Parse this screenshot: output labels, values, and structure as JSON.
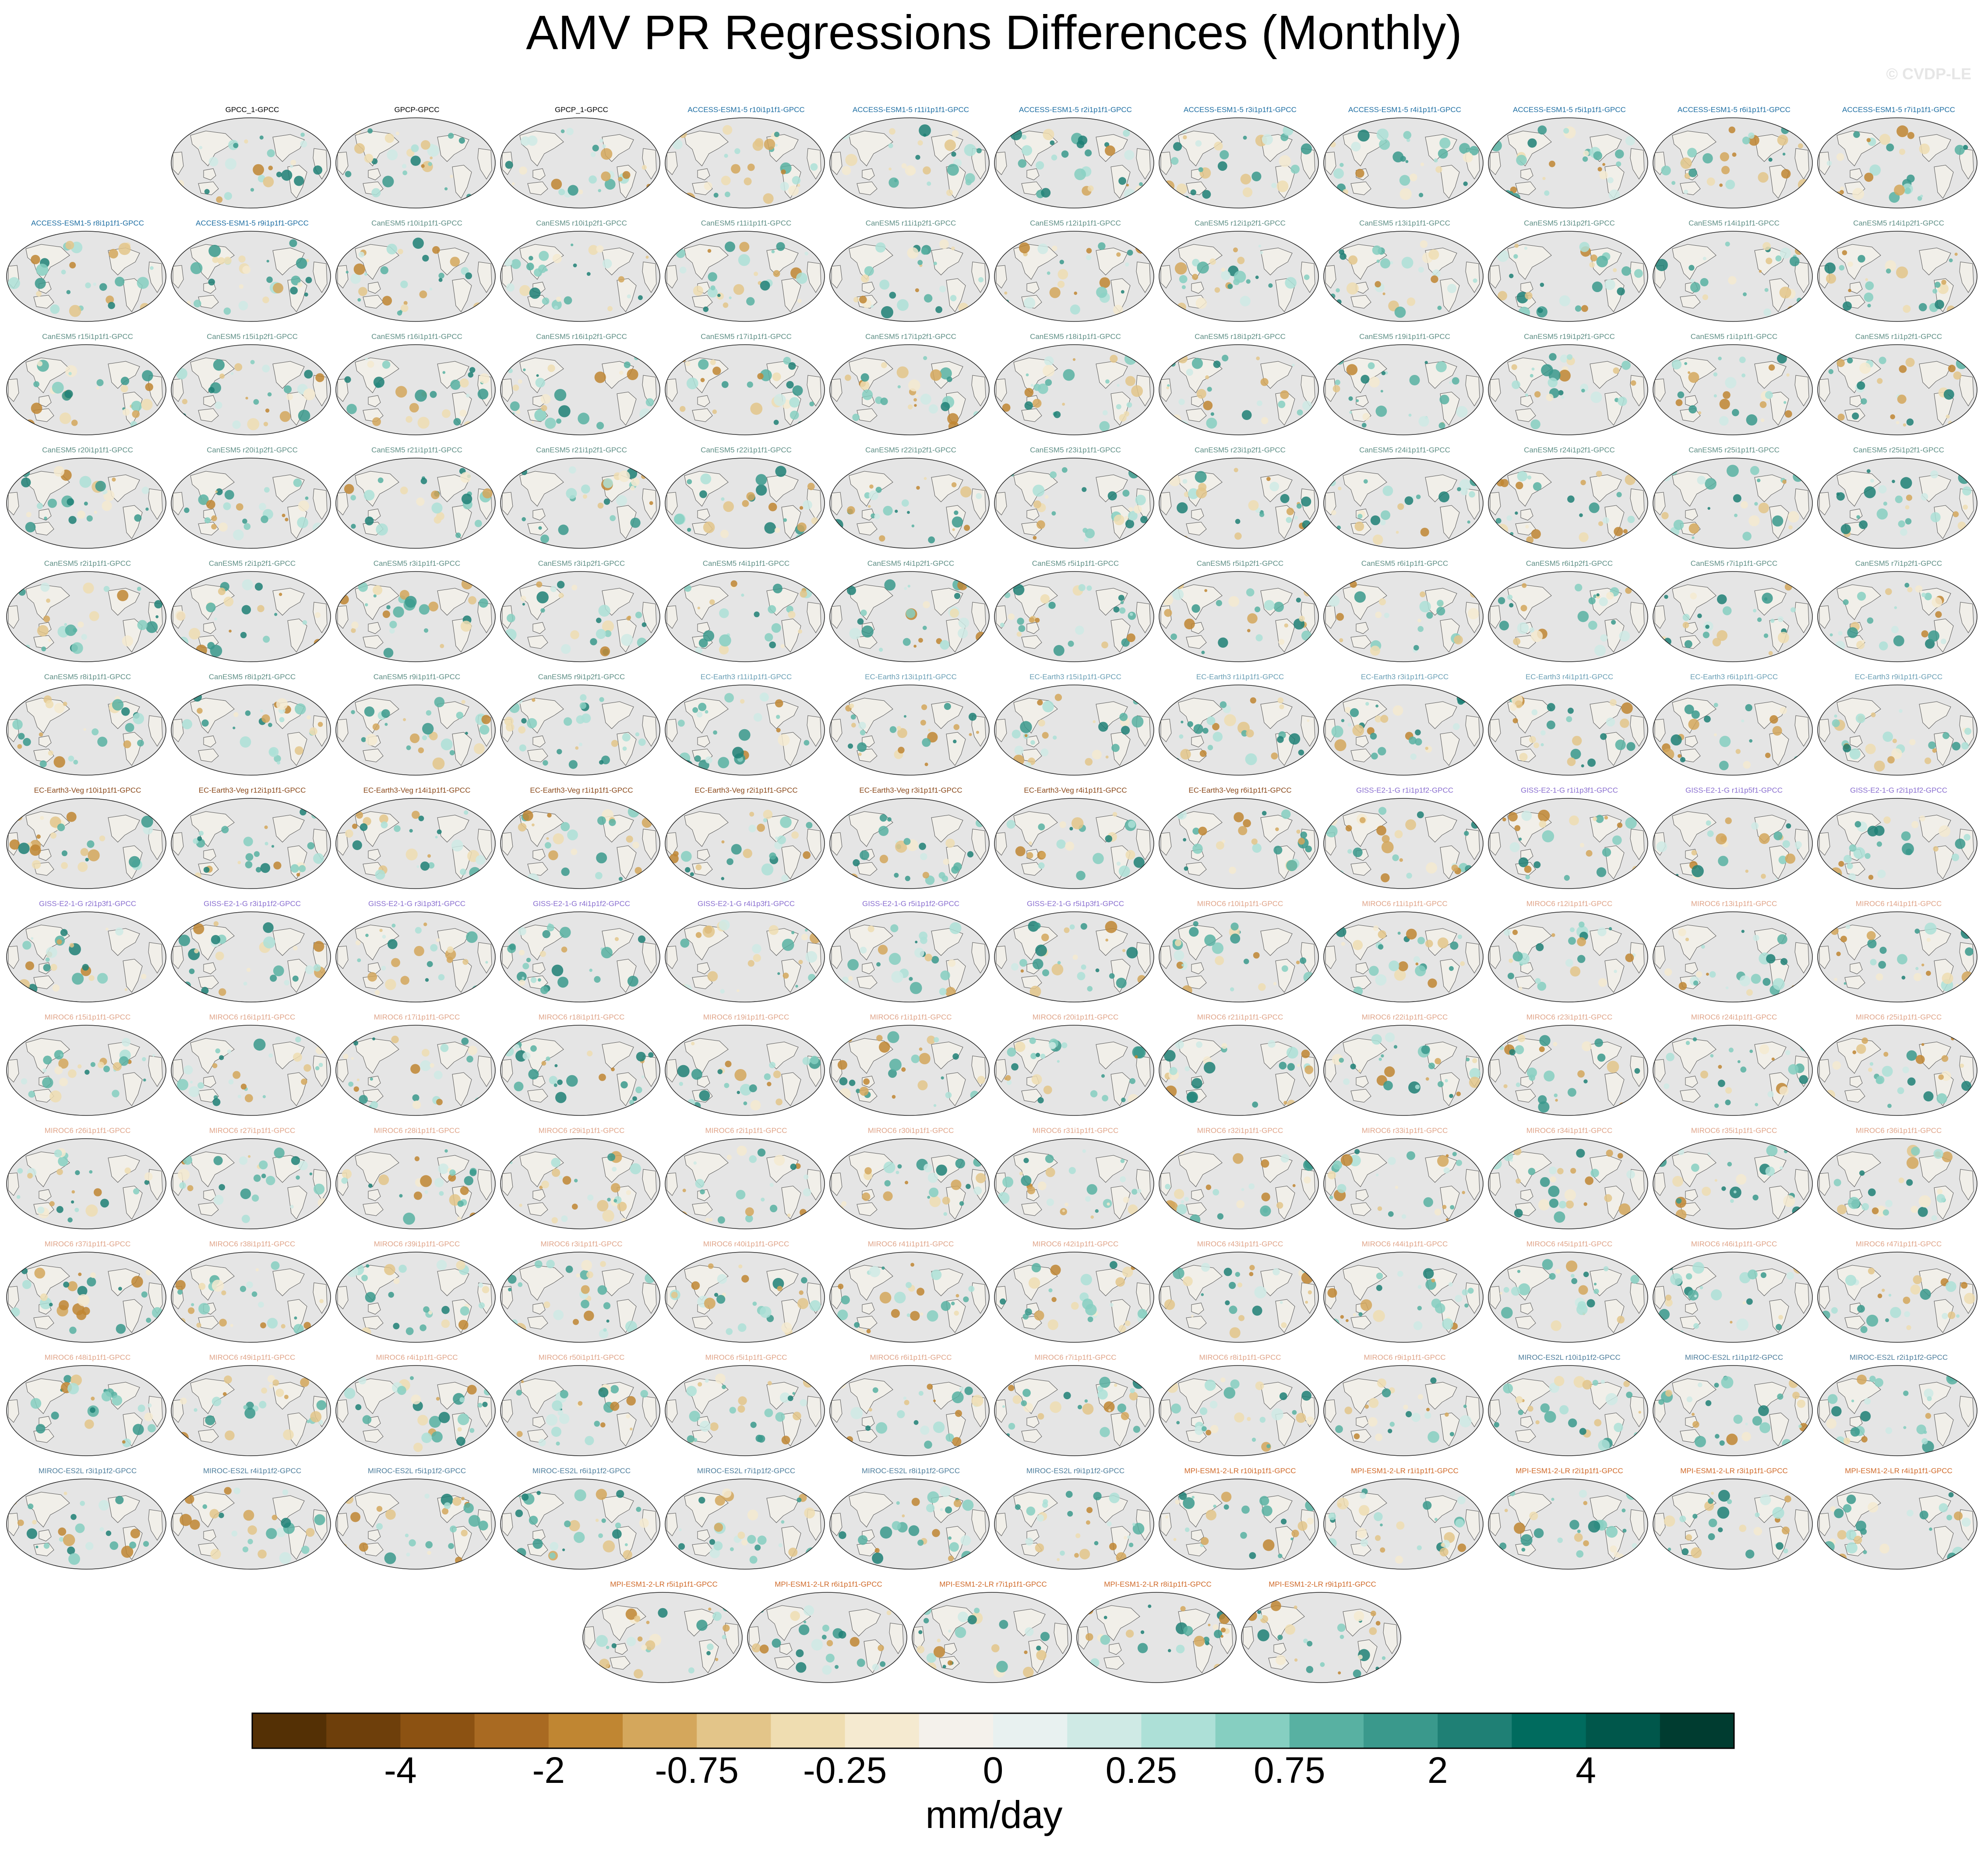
{
  "title": "AMV PR Regressions Differences (Monthly)",
  "watermark": "© CVDP-LE",
  "chart_data": {
    "type": "heatmap",
    "map_projection": "robinson-pacific-centered",
    "colorbar": {
      "units": "mm/day",
      "tick_labels": [
        "-4",
        "-2",
        "-0.75",
        "-0.25",
        "0",
        "0.25",
        "0.75",
        "2",
        "4"
      ],
      "colors": [
        "#543005",
        "#6e3f0b",
        "#8c5212",
        "#a96a22",
        "#c08632",
        "#d4a75c",
        "#e3c589",
        "#efddb1",
        "#f5ead0",
        "#f4f1eb",
        "#e8f1f0",
        "#cfeae5",
        "#ade0d7",
        "#86cfc1",
        "#58b1a2",
        "#3a998c",
        "#1f8075",
        "#006b5e",
        "#00574b",
        "#003c30"
      ]
    },
    "panels": [
      {
        "label": "GPCC_1-GPCC",
        "color": "#000000"
      },
      {
        "label": "GPCP-GPCC",
        "color": "#000000"
      },
      {
        "label": "GPCP_1-GPCC",
        "color": "#000000"
      },
      {
        "label": "ACCESS-ESM1-5 r10i1p1f1-GPCC",
        "color": "#1f6fa3"
      },
      {
        "label": "ACCESS-ESM1-5 r11i1p1f1-GPCC",
        "color": "#1f6fa3"
      },
      {
        "label": "ACCESS-ESM1-5 r2i1p1f1-GPCC",
        "color": "#1f6fa3"
      },
      {
        "label": "ACCESS-ESM1-5 r3i1p1f1-GPCC",
        "color": "#1f6fa3"
      },
      {
        "label": "ACCESS-ESM1-5 r4i1p1f1-GPCC",
        "color": "#1f6fa3"
      },
      {
        "label": "ACCESS-ESM1-5 r5i1p1f1-GPCC",
        "color": "#1f6fa3"
      },
      {
        "label": "ACCESS-ESM1-5 r6i1p1f1-GPCC",
        "color": "#1f6fa3"
      },
      {
        "label": "ACCESS-ESM1-5 r7i1p1f1-GPCC",
        "color": "#1f6fa3"
      },
      {
        "label": "ACCESS-ESM1-5 r8i1p1f1-GPCC",
        "color": "#1f6fa3"
      },
      {
        "label": "ACCESS-ESM1-5 r9i1p1f1-GPCC",
        "color": "#1f6fa3"
      },
      {
        "label": "CanESM5 r10i1p1f1-GPCC",
        "color": "#5f8f86"
      },
      {
        "label": "CanESM5 r10i1p2f1-GPCC",
        "color": "#5f8f86"
      },
      {
        "label": "CanESM5 r11i1p1f1-GPCC",
        "color": "#5f8f86"
      },
      {
        "label": "CanESM5 r11i1p2f1-GPCC",
        "color": "#5f8f86"
      },
      {
        "label": "CanESM5 r12i1p1f1-GPCC",
        "color": "#5f8f86"
      },
      {
        "label": "CanESM5 r12i1p2f1-GPCC",
        "color": "#5f8f86"
      },
      {
        "label": "CanESM5 r13i1p1f1-GPCC",
        "color": "#5f8f86"
      },
      {
        "label": "CanESM5 r13i1p2f1-GPCC",
        "color": "#5f8f86"
      },
      {
        "label": "CanESM5 r14i1p1f1-GPCC",
        "color": "#5f8f86"
      },
      {
        "label": "CanESM5 r14i1p2f1-GPCC",
        "color": "#5f8f86"
      },
      {
        "label": "CanESM5 r15i1p1f1-GPCC",
        "color": "#5f8f86"
      },
      {
        "label": "CanESM5 r15i1p2f1-GPCC",
        "color": "#5f8f86"
      },
      {
        "label": "CanESM5 r16i1p1f1-GPCC",
        "color": "#5f8f86"
      },
      {
        "label": "CanESM5 r16i1p2f1-GPCC",
        "color": "#5f8f86"
      },
      {
        "label": "CanESM5 r17i1p1f1-GPCC",
        "color": "#5f8f86"
      },
      {
        "label": "CanESM5 r17i1p2f1-GPCC",
        "color": "#5f8f86"
      },
      {
        "label": "CanESM5 r18i1p1f1-GPCC",
        "color": "#5f8f86"
      },
      {
        "label": "CanESM5 r18i1p2f1-GPCC",
        "color": "#5f8f86"
      },
      {
        "label": "CanESM5 r19i1p1f1-GPCC",
        "color": "#5f8f86"
      },
      {
        "label": "CanESM5 r19i1p2f1-GPCC",
        "color": "#5f8f86"
      },
      {
        "label": "CanESM5 r1i1p1f1-GPCC",
        "color": "#5f8f86"
      },
      {
        "label": "CanESM5 r1i1p2f1-GPCC",
        "color": "#5f8f86"
      },
      {
        "label": "CanESM5 r20i1p1f1-GPCC",
        "color": "#5f8f86"
      },
      {
        "label": "CanESM5 r20i1p2f1-GPCC",
        "color": "#5f8f86"
      },
      {
        "label": "CanESM5 r21i1p1f1-GPCC",
        "color": "#5f8f86"
      },
      {
        "label": "CanESM5 r21i1p2f1-GPCC",
        "color": "#5f8f86"
      },
      {
        "label": "CanESM5 r22i1p1f1-GPCC",
        "color": "#5f8f86"
      },
      {
        "label": "CanESM5 r22i1p2f1-GPCC",
        "color": "#5f8f86"
      },
      {
        "label": "CanESM5 r23i1p1f1-GPCC",
        "color": "#5f8f86"
      },
      {
        "label": "CanESM5 r23i1p2f1-GPCC",
        "color": "#5f8f86"
      },
      {
        "label": "CanESM5 r24i1p1f1-GPCC",
        "color": "#5f8f86"
      },
      {
        "label": "CanESM5 r24i1p2f1-GPCC",
        "color": "#5f8f86"
      },
      {
        "label": "CanESM5 r25i1p1f1-GPCC",
        "color": "#5f8f86"
      },
      {
        "label": "CanESM5 r25i1p2f1-GPCC",
        "color": "#5f8f86"
      },
      {
        "label": "CanESM5 r2i1p1f1-GPCC",
        "color": "#5f8f86"
      },
      {
        "label": "CanESM5 r2i1p2f1-GPCC",
        "color": "#5f8f86"
      },
      {
        "label": "CanESM5 r3i1p1f1-GPCC",
        "color": "#5f8f86"
      },
      {
        "label": "CanESM5 r3i1p2f1-GPCC",
        "color": "#5f8f86"
      },
      {
        "label": "CanESM5 r4i1p1f1-GPCC",
        "color": "#5f8f86"
      },
      {
        "label": "CanESM5 r4i1p2f1-GPCC",
        "color": "#5f8f86"
      },
      {
        "label": "CanESM5 r5i1p1f1-GPCC",
        "color": "#5f8f86"
      },
      {
        "label": "CanESM5 r5i1p2f1-GPCC",
        "color": "#5f8f86"
      },
      {
        "label": "CanESM5 r6i1p1f1-GPCC",
        "color": "#5f8f86"
      },
      {
        "label": "CanESM5 r6i1p2f1-GPCC",
        "color": "#5f8f86"
      },
      {
        "label": "CanESM5 r7i1p1f1-GPCC",
        "color": "#5f8f86"
      },
      {
        "label": "CanESM5 r7i1p2f1-GPCC",
        "color": "#5f8f86"
      },
      {
        "label": "CanESM5 r8i1p1f1-GPCC",
        "color": "#5f8f86"
      },
      {
        "label": "CanESM5 r8i1p2f1-GPCC",
        "color": "#5f8f86"
      },
      {
        "label": "CanESM5 r9i1p1f1-GPCC",
        "color": "#5f8f86"
      },
      {
        "label": "CanESM5 r9i1p2f1-GPCC",
        "color": "#5f8f86"
      },
      {
        "label": "EC-Earth3 r11i1p1f1-GPCC",
        "color": "#6a9fb5"
      },
      {
        "label": "EC-Earth3 r13i1p1f1-GPCC",
        "color": "#6a9fb5"
      },
      {
        "label": "EC-Earth3 r15i1p1f1-GPCC",
        "color": "#6a9fb5"
      },
      {
        "label": "EC-Earth3 r1i1p1f1-GPCC",
        "color": "#6a9fb5"
      },
      {
        "label": "EC-Earth3 r3i1p1f1-GPCC",
        "color": "#6a9fb5"
      },
      {
        "label": "EC-Earth3 r4i1p1f1-GPCC",
        "color": "#6a9fb5"
      },
      {
        "label": "EC-Earth3 r6i1p1f1-GPCC",
        "color": "#6a9fb5"
      },
      {
        "label": "EC-Earth3 r9i1p1f1-GPCC",
        "color": "#6a9fb5"
      },
      {
        "label": "EC-Earth3-Veg r10i1p1f1-GPCC",
        "color": "#8b4a1c"
      },
      {
        "label": "EC-Earth3-Veg r12i1p1f1-GPCC",
        "color": "#8b4a1c"
      },
      {
        "label": "EC-Earth3-Veg r14i1p1f1-GPCC",
        "color": "#8b4a1c"
      },
      {
        "label": "EC-Earth3-Veg r1i1p1f1-GPCC",
        "color": "#8b4a1c"
      },
      {
        "label": "EC-Earth3-Veg r2i1p1f1-GPCC",
        "color": "#8b4a1c"
      },
      {
        "label": "EC-Earth3-Veg r3i1p1f1-GPCC",
        "color": "#8b4a1c"
      },
      {
        "label": "EC-Earth3-Veg r4i1p1f1-GPCC",
        "color": "#8b4a1c"
      },
      {
        "label": "EC-Earth3-Veg r6i1p1f1-GPCC",
        "color": "#8b4a1c"
      },
      {
        "label": "GISS-E2-1-G r1i1p1f2-GPCC",
        "color": "#8a6fd0"
      },
      {
        "label": "GISS-E2-1-G r1i1p3f1-GPCC",
        "color": "#8a6fd0"
      },
      {
        "label": "GISS-E2-1-G r1i1p5f1-GPCC",
        "color": "#8a6fd0"
      },
      {
        "label": "GISS-E2-1-G r2i1p1f2-GPCC",
        "color": "#8a6fd0"
      },
      {
        "label": "GISS-E2-1-G r2i1p3f1-GPCC",
        "color": "#8a6fd0"
      },
      {
        "label": "GISS-E2-1-G r3i1p1f2-GPCC",
        "color": "#8a6fd0"
      },
      {
        "label": "GISS-E2-1-G r3i1p3f1-GPCC",
        "color": "#8a6fd0"
      },
      {
        "label": "GISS-E2-1-G r4i1p1f2-GPCC",
        "color": "#8a6fd0"
      },
      {
        "label": "GISS-E2-1-G r4i1p3f1-GPCC",
        "color": "#8a6fd0"
      },
      {
        "label": "GISS-E2-1-G r5i1p1f2-GPCC",
        "color": "#8a6fd0"
      },
      {
        "label": "GISS-E2-1-G r5i1p3f1-GPCC",
        "color": "#8a6fd0"
      },
      {
        "label": "MIROC6 r10i1p1f1-GPCC",
        "color": "#e0a58a"
      },
      {
        "label": "MIROC6 r11i1p1f1-GPCC",
        "color": "#e0a58a"
      },
      {
        "label": "MIROC6 r12i1p1f1-GPCC",
        "color": "#e0a58a"
      },
      {
        "label": "MIROC6 r13i1p1f1-GPCC",
        "color": "#e0a58a"
      },
      {
        "label": "MIROC6 r14i1p1f1-GPCC",
        "color": "#e0a58a"
      },
      {
        "label": "MIROC6 r15i1p1f1-GPCC",
        "color": "#e0a58a"
      },
      {
        "label": "MIROC6 r16i1p1f1-GPCC",
        "color": "#e0a58a"
      },
      {
        "label": "MIROC6 r17i1p1f1-GPCC",
        "color": "#e0a58a"
      },
      {
        "label": "MIROC6 r18i1p1f1-GPCC",
        "color": "#e0a58a"
      },
      {
        "label": "MIROC6 r19i1p1f1-GPCC",
        "color": "#e0a58a"
      },
      {
        "label": "MIROC6 r1i1p1f1-GPCC",
        "color": "#e0a58a"
      },
      {
        "label": "MIROC6 r20i1p1f1-GPCC",
        "color": "#e0a58a"
      },
      {
        "label": "MIROC6 r21i1p1f1-GPCC",
        "color": "#e0a58a"
      },
      {
        "label": "MIROC6 r22i1p1f1-GPCC",
        "color": "#e0a58a"
      },
      {
        "label": "MIROC6 r23i1p1f1-GPCC",
        "color": "#e0a58a"
      },
      {
        "label": "MIROC6 r24i1p1f1-GPCC",
        "color": "#e0a58a"
      },
      {
        "label": "MIROC6 r25i1p1f1-GPCC",
        "color": "#e0a58a"
      },
      {
        "label": "MIROC6 r26i1p1f1-GPCC",
        "color": "#e0a58a"
      },
      {
        "label": "MIROC6 r27i1p1f1-GPCC",
        "color": "#e0a58a"
      },
      {
        "label": "MIROC6 r28i1p1f1-GPCC",
        "color": "#e0a58a"
      },
      {
        "label": "MIROC6 r29i1p1f1-GPCC",
        "color": "#e0a58a"
      },
      {
        "label": "MIROC6 r2i1p1f1-GPCC",
        "color": "#e0a58a"
      },
      {
        "label": "MIROC6 r30i1p1f1-GPCC",
        "color": "#e0a58a"
      },
      {
        "label": "MIROC6 r31i1p1f1-GPCC",
        "color": "#e0a58a"
      },
      {
        "label": "MIROC6 r32i1p1f1-GPCC",
        "color": "#e0a58a"
      },
      {
        "label": "MIROC6 r33i1p1f1-GPCC",
        "color": "#e0a58a"
      },
      {
        "label": "MIROC6 r34i1p1f1-GPCC",
        "color": "#e0a58a"
      },
      {
        "label": "MIROC6 r35i1p1f1-GPCC",
        "color": "#e0a58a"
      },
      {
        "label": "MIROC6 r36i1p1f1-GPCC",
        "color": "#e0a58a"
      },
      {
        "label": "MIROC6 r37i1p1f1-GPCC",
        "color": "#e0a58a"
      },
      {
        "label": "MIROC6 r38i1p1f1-GPCC",
        "color": "#e0a58a"
      },
      {
        "label": "MIROC6 r39i1p1f1-GPCC",
        "color": "#e0a58a"
      },
      {
        "label": "MIROC6 r3i1p1f1-GPCC",
        "color": "#e0a58a"
      },
      {
        "label": "MIROC6 r40i1p1f1-GPCC",
        "color": "#e0a58a"
      },
      {
        "label": "MIROC6 r41i1p1f1-GPCC",
        "color": "#e0a58a"
      },
      {
        "label": "MIROC6 r42i1p1f1-GPCC",
        "color": "#e0a58a"
      },
      {
        "label": "MIROC6 r43i1p1f1-GPCC",
        "color": "#e0a58a"
      },
      {
        "label": "MIROC6 r44i1p1f1-GPCC",
        "color": "#e0a58a"
      },
      {
        "label": "MIROC6 r45i1p1f1-GPCC",
        "color": "#e0a58a"
      },
      {
        "label": "MIROC6 r46i1p1f1-GPCC",
        "color": "#e0a58a"
      },
      {
        "label": "MIROC6 r47i1p1f1-GPCC",
        "color": "#e0a58a"
      },
      {
        "label": "MIROC6 r48i1p1f1-GPCC",
        "color": "#e0a58a"
      },
      {
        "label": "MIROC6 r49i1p1f1-GPCC",
        "color": "#e0a58a"
      },
      {
        "label": "MIROC6 r4i1p1f1-GPCC",
        "color": "#e0a58a"
      },
      {
        "label": "MIROC6 r50i1p1f1-GPCC",
        "color": "#e0a58a"
      },
      {
        "label": "MIROC6 r5i1p1f1-GPCC",
        "color": "#e0a58a"
      },
      {
        "label": "MIROC6 r6i1p1f1-GPCC",
        "color": "#e0a58a"
      },
      {
        "label": "MIROC6 r7i1p1f1-GPCC",
        "color": "#e0a58a"
      },
      {
        "label": "MIROC6 r8i1p1f1-GPCC",
        "color": "#e0a58a"
      },
      {
        "label": "MIROC6 r9i1p1f1-GPCC",
        "color": "#e0a58a"
      },
      {
        "label": "MIROC-ES2L r10i1p1f2-GPCC",
        "color": "#4e7e9c"
      },
      {
        "label": "MIROC-ES2L r1i1p1f2-GPCC",
        "color": "#4e7e9c"
      },
      {
        "label": "MIROC-ES2L r2i1p1f2-GPCC",
        "color": "#4e7e9c"
      },
      {
        "label": "MIROC-ES2L r3i1p1f2-GPCC",
        "color": "#4e7e9c"
      },
      {
        "label": "MIROC-ES2L r4i1p1f2-GPCC",
        "color": "#4e7e9c"
      },
      {
        "label": "MIROC-ES2L r5i1p1f2-GPCC",
        "color": "#4e7e9c"
      },
      {
        "label": "MIROC-ES2L r6i1p1f2-GPCC",
        "color": "#4e7e9c"
      },
      {
        "label": "MIROC-ES2L r7i1p1f2-GPCC",
        "color": "#4e7e9c"
      },
      {
        "label": "MIROC-ES2L r8i1p1f2-GPCC",
        "color": "#4e7e9c"
      },
      {
        "label": "MIROC-ES2L r9i1p1f2-GPCC",
        "color": "#4e7e9c"
      },
      {
        "label": "MPI-ESM1-2-LR r10i1p1f1-GPCC",
        "color": "#d06a2a"
      },
      {
        "label": "MPI-ESM1-2-LR r1i1p1f1-GPCC",
        "color": "#d06a2a"
      },
      {
        "label": "MPI-ESM1-2-LR r2i1p1f1-GPCC",
        "color": "#d06a2a"
      },
      {
        "label": "MPI-ESM1-2-LR r3i1p1f1-GPCC",
        "color": "#d06a2a"
      },
      {
        "label": "MPI-ESM1-2-LR r4i1p1f1-GPCC",
        "color": "#d06a2a"
      },
      {
        "label": "MPI-ESM1-2-LR r5i1p1f1-GPCC",
        "color": "#d06a2a"
      },
      {
        "label": "MPI-ESM1-2-LR r6i1p1f1-GPCC",
        "color": "#d06a2a"
      },
      {
        "label": "MPI-ESM1-2-LR r7i1p1f1-GPCC",
        "color": "#d06a2a"
      },
      {
        "label": "MPI-ESM1-2-LR r8i1p1f1-GPCC",
        "color": "#d06a2a"
      },
      {
        "label": "MPI-ESM1-2-LR r9i1p1f1-GPCC",
        "color": "#d06a2a"
      }
    ]
  }
}
